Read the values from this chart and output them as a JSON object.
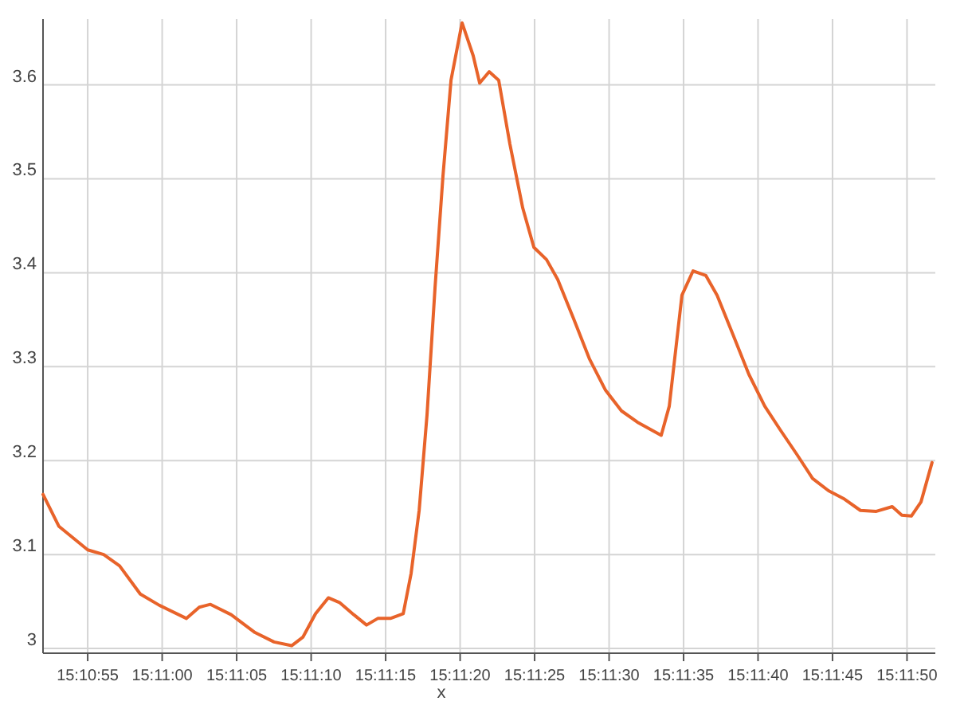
{
  "chart_data": {
    "type": "line",
    "xlabel": "x",
    "x": [
      15.181111,
      15.181408,
      15.181944,
      15.182242,
      15.182539,
      15.182925,
      15.183281,
      15.183786,
      15.184025,
      15.184233,
      15.184619,
      15.185064,
      15.185419,
      15.185747,
      15.185956,
      15.186192,
      15.186431,
      15.186639,
      15.186906,
      15.187144,
      15.187353,
      15.187589,
      15.187828,
      15.187975,
      15.188125,
      15.188272,
      15.188422,
      15.188569,
      15.188719,
      15.188925,
      15.189133,
      15.189253,
      15.189431,
      15.189608,
      15.189817,
      15.190056,
      15.190264,
      15.1905,
      15.190708,
      15.191006,
      15.191303,
      15.1916,
      15.191897,
      15.192194,
      15.192639,
      15.192789,
      15.193025,
      15.193233,
      15.193472,
      15.193681,
      15.193978,
      15.194272,
      15.194569,
      15.194867,
      15.195164,
      15.195461,
      15.195758,
      15.196056,
      15.196353,
      15.19665,
      15.196947,
      15.197125,
      15.197303,
      15.197483,
      15.197689
    ],
    "series": [
      {
        "color": "#e8632a",
        "values": [
          3.164,
          3.13,
          3.105,
          3.1,
          3.088,
          3.058,
          3.046,
          3.032,
          3.044,
          3.047,
          3.036,
          3.017,
          3.007,
          3.003,
          3.012,
          3.037,
          3.054,
          3.049,
          3.036,
          3.025,
          3.032,
          3.032,
          3.037,
          3.08,
          3.147,
          3.249,
          3.385,
          3.503,
          3.605,
          3.666,
          3.631,
          3.602,
          3.614,
          3.605,
          3.537,
          3.469,
          3.427,
          3.414,
          3.393,
          3.351,
          3.308,
          3.275,
          3.253,
          3.241,
          3.227,
          3.258,
          3.376,
          3.402,
          3.397,
          3.376,
          3.334,
          3.292,
          3.258,
          3.232,
          3.207,
          3.181,
          3.168,
          3.159,
          3.147,
          3.146,
          3.151,
          3.142,
          3.141,
          3.156,
          3.198
        ]
      }
    ],
    "xlim": [
      15.181111,
      15.19775
    ],
    "xticks": [
      {
        "value": 15.181944,
        "label": "15:10:55"
      },
      {
        "value": 15.183333,
        "label": "15:11:00"
      },
      {
        "value": 15.184722,
        "label": "15:11:05"
      },
      {
        "value": 15.186111,
        "label": "15:11:10"
      },
      {
        "value": 15.1875,
        "label": "15:11:15"
      },
      {
        "value": 15.188889,
        "label": "15:11:20"
      },
      {
        "value": 15.190278,
        "label": "15:11:25"
      },
      {
        "value": 15.191667,
        "label": "15:11:30"
      },
      {
        "value": 15.193056,
        "label": "15:11:35"
      },
      {
        "value": 15.194444,
        "label": "15:11:40"
      },
      {
        "value": 15.195833,
        "label": "15:11:45"
      },
      {
        "value": 15.197222,
        "label": "15:11:50"
      }
    ],
    "ylim": [
      2.995,
      3.67
    ],
    "yticks": [
      3,
      3.1,
      3.2,
      3.3,
      3.4,
      3.5,
      3.6
    ],
    "grid": true,
    "marker": "none",
    "line_style": "solid"
  }
}
